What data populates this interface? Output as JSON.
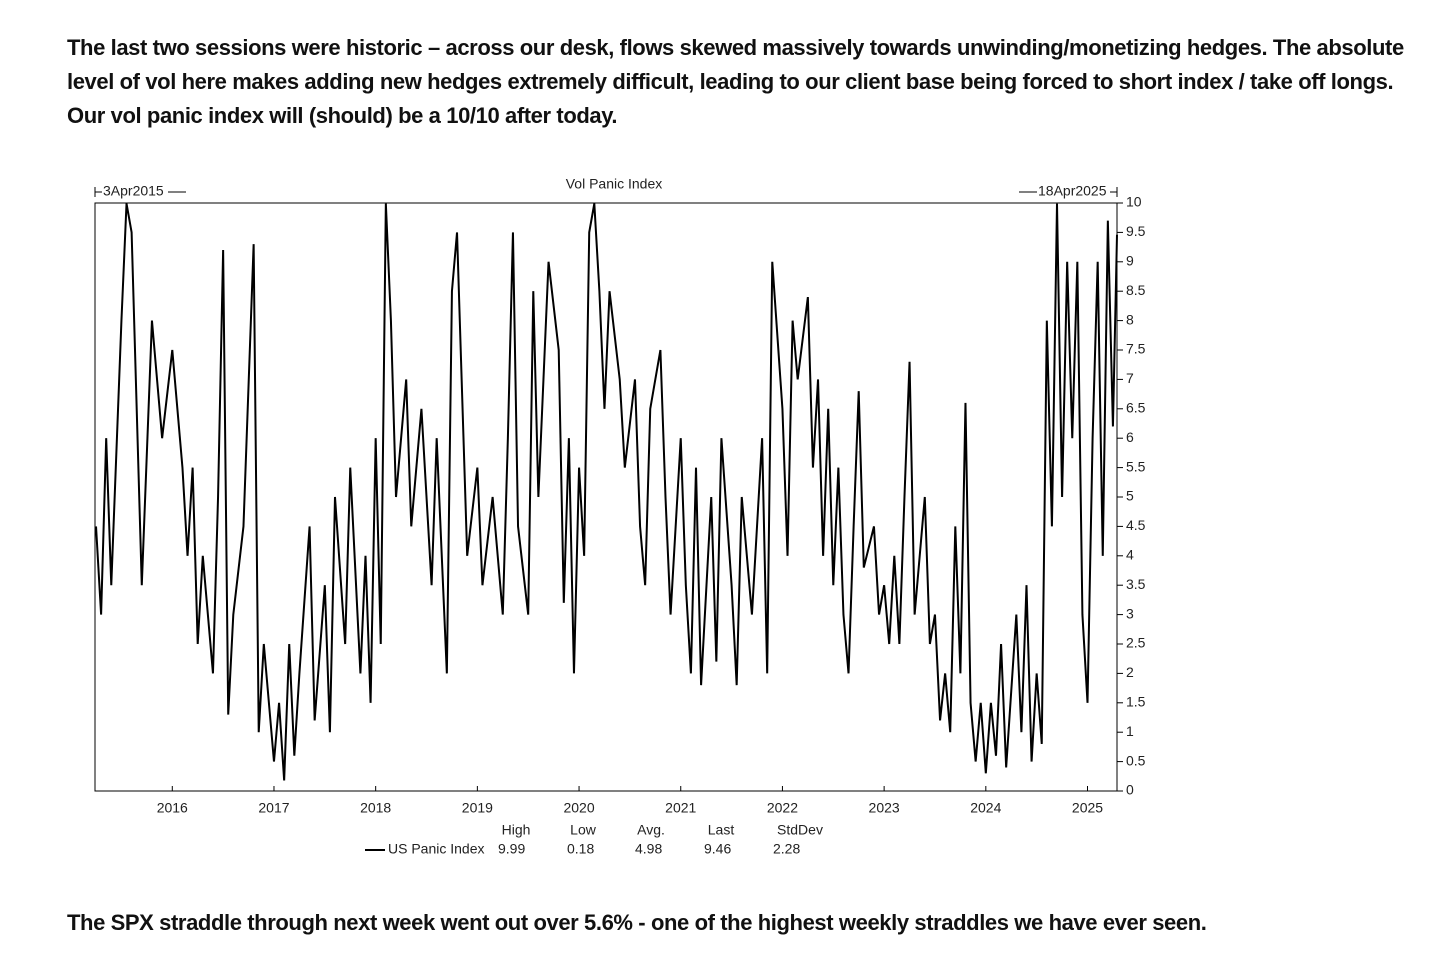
{
  "text": {
    "intro": "The last two sessions were historic – across our desk, flows skewed massively towards unwinding/monetizing hedges. The absolute level of vol here makes adding new hedges extremely difficult, leading to our client base being forced to short index / take off longs. Our vol panic index will (should) be a 10/10 after today.",
    "footer": "The SPX straddle through next week went out over 5.6% - one of the highest weekly straddles we have ever seen."
  },
  "chart_data": {
    "type": "line",
    "title": "Vol Panic Index",
    "start_label": "3Apr2015",
    "end_label": "18Apr2025",
    "x": [
      2015.25,
      2015.3,
      2015.35,
      2015.4,
      2015.5,
      2015.55,
      2015.6,
      2015.7,
      2015.8,
      2015.9,
      2016.0,
      2016.1,
      2016.15,
      2016.2,
      2016.25,
      2016.3,
      2016.4,
      2016.45,
      2016.5,
      2016.55,
      2016.6,
      2016.7,
      2016.8,
      2016.85,
      2016.9,
      2017.0,
      2017.05,
      2017.1,
      2017.15,
      2017.2,
      2017.25,
      2017.35,
      2017.4,
      2017.5,
      2017.55,
      2017.6,
      2017.7,
      2017.75,
      2017.85,
      2017.9,
      2017.95,
      2018.0,
      2018.05,
      2018.1,
      2018.15,
      2018.2,
      2018.3,
      2018.35,
      2018.45,
      2018.55,
      2018.6,
      2018.7,
      2018.75,
      2018.8,
      2018.9,
      2019.0,
      2019.05,
      2019.15,
      2019.25,
      2019.3,
      2019.35,
      2019.4,
      2019.5,
      2019.55,
      2019.6,
      2019.7,
      2019.8,
      2019.85,
      2019.9,
      2019.95,
      2020.0,
      2020.05,
      2020.1,
      2020.15,
      2020.2,
      2020.25,
      2020.3,
      2020.4,
      2020.45,
      2020.55,
      2020.6,
      2020.65,
      2020.7,
      2020.8,
      2020.85,
      2020.9,
      2021.0,
      2021.05,
      2021.1,
      2021.15,
      2021.2,
      2021.3,
      2021.35,
      2021.4,
      2021.5,
      2021.55,
      2021.6,
      2021.7,
      2021.8,
      2021.85,
      2021.9,
      2022.0,
      2022.05,
      2022.1,
      2022.15,
      2022.25,
      2022.3,
      2022.35,
      2022.4,
      2022.45,
      2022.5,
      2022.55,
      2022.6,
      2022.65,
      2022.7,
      2022.75,
      2022.8,
      2022.9,
      2022.95,
      2023.0,
      2023.05,
      2023.1,
      2023.15,
      2023.2,
      2023.25,
      2023.3,
      2023.4,
      2023.45,
      2023.5,
      2023.55,
      2023.6,
      2023.65,
      2023.7,
      2023.75,
      2023.8,
      2023.85,
      2023.9,
      2023.95,
      2024.0,
      2024.05,
      2024.1,
      2024.15,
      2024.2,
      2024.3,
      2024.35,
      2024.4,
      2024.45,
      2024.5,
      2024.55,
      2024.6,
      2024.65,
      2024.7,
      2024.75,
      2024.8,
      2024.85,
      2024.9,
      2024.95,
      2025.0,
      2025.05,
      2025.1,
      2025.15,
      2025.2,
      2025.25,
      2025.29
    ],
    "series": [
      {
        "name": "US Panic Index",
        "color": "#000000",
        "values": [
          4.5,
          3,
          6,
          3.5,
          8,
          9.99,
          9.5,
          3.5,
          8,
          6,
          7.5,
          5.5,
          4,
          5.5,
          2.5,
          4,
          2,
          5,
          9.2,
          1.3,
          3,
          4.5,
          9.3,
          1,
          2.5,
          0.5,
          1.5,
          0.18,
          2.5,
          0.6,
          2,
          4.5,
          1.2,
          3.5,
          1,
          5,
          2.5,
          5.5,
          2,
          4,
          1.5,
          6,
          2.5,
          9.99,
          8,
          5,
          7,
          4.5,
          6.5,
          3.5,
          6,
          2,
          8.5,
          9.5,
          4,
          5.5,
          3.5,
          5,
          3,
          6,
          9.5,
          4.5,
          3,
          8.5,
          5,
          9,
          7.5,
          3.2,
          6,
          2,
          5.5,
          4,
          9.5,
          9.99,
          8.5,
          6.5,
          8.5,
          7,
          5.5,
          7,
          4.5,
          3.5,
          6.5,
          7.5,
          5,
          3,
          6,
          3.5,
          2,
          5.5,
          1.8,
          5,
          2.2,
          6,
          3.5,
          1.8,
          5,
          3,
          6,
          2,
          9,
          6.5,
          4,
          8,
          7,
          8.4,
          5.5,
          7,
          4,
          6.5,
          3.5,
          5.5,
          3,
          2,
          4.5,
          6.8,
          3.8,
          4.5,
          3,
          3.5,
          2.5,
          4,
          2.5,
          5,
          7.3,
          3,
          5,
          2.5,
          3,
          1.2,
          2,
          1,
          4.5,
          2,
          6.6,
          1.5,
          0.5,
          1.5,
          0.3,
          1.5,
          0.6,
          2.5,
          0.4,
          3,
          1,
          3.5,
          0.5,
          2,
          0.8,
          8,
          4.5,
          9.99,
          5,
          9,
          6,
          9,
          3,
          1.5,
          6,
          9,
          4,
          9.7,
          6.2,
          9.46
        ]
      }
    ],
    "xlim": [
      2015.24,
      2025.29
    ],
    "xticks": [
      2016,
      2017,
      2018,
      2019,
      2020,
      2021,
      2022,
      2023,
      2024,
      2025
    ],
    "ylim": [
      0,
      10
    ],
    "yticks": [
      0,
      0.5,
      1,
      1.5,
      2,
      2.5,
      3,
      3.5,
      4,
      4.5,
      5,
      5.5,
      6,
      6.5,
      7,
      7.5,
      8,
      8.5,
      9,
      9.5,
      10
    ],
    "stats": {
      "headers": [
        "High",
        "Low",
        "Avg.",
        "Last",
        "StdDev"
      ],
      "values": [
        9.99,
        0.18,
        4.98,
        9.46,
        2.28
      ]
    }
  }
}
